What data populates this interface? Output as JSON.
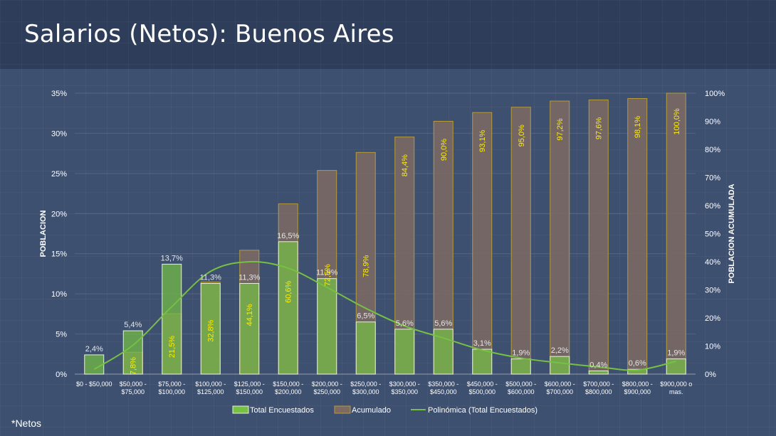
{
  "page": {
    "title": "Salarios (Netos): Buenos Aires",
    "footnote": "*Netos"
  },
  "chart_data": {
    "type": "bar",
    "title": "Salarios (Netos): Buenos Aires",
    "ylabel": "POBLACION",
    "y2label": "POBLACION ACUMULADA",
    "ylim": [
      0,
      35
    ],
    "y2lim": [
      0,
      100
    ],
    "yticks": [
      "0%",
      "5%",
      "10%",
      "15%",
      "20%",
      "25%",
      "30%",
      "35%"
    ],
    "y2ticks": [
      "0%",
      "10%",
      "20%",
      "30%",
      "40%",
      "50%",
      "60%",
      "70%",
      "80%",
      "90%",
      "100%"
    ],
    "categories": [
      [
        "$0 - $50,000"
      ],
      [
        "$50,000 -",
        "$75,000"
      ],
      [
        "$75,000 -",
        "$100,000"
      ],
      [
        "$100,000 -",
        "$125,000"
      ],
      [
        "$125,000 -",
        "$150,000"
      ],
      [
        "$150,000 -",
        "$200,000"
      ],
      [
        "$200,000 -",
        "$250,000"
      ],
      [
        "$250,000 -",
        "$300,000"
      ],
      [
        "$300,000 -",
        "$350,000"
      ],
      [
        "$350,000 -",
        "$450,000"
      ],
      [
        "$450,000 -",
        "$500,000"
      ],
      [
        "$500,000 -",
        "$600,000"
      ],
      [
        "$600,000 -",
        "$700,000"
      ],
      [
        "$700,000 -",
        "$800,000"
      ],
      [
        "$800,000 -",
        "$900,000"
      ],
      [
        "$900,000 o",
        "mas."
      ]
    ],
    "series": [
      {
        "name": "Total Encuestados",
        "axis": "left",
        "color": "#76c043",
        "values": [
          2.4,
          5.4,
          13.7,
          11.3,
          11.3,
          16.5,
          11.9,
          6.5,
          5.6,
          5.6,
          3.1,
          1.9,
          2.2,
          0.4,
          0.6,
          1.9
        ],
        "labels": [
          "2,4%",
          "5,4%",
          "13,7%",
          "11,3%",
          "11,3%",
          "16,5%",
          "11,9%",
          "6,5%",
          "5,6%",
          "5,6%",
          "3,1%",
          "1,9%",
          "2,2%",
          "0,4%",
          "0,6%",
          "1,9%"
        ]
      },
      {
        "name": "Acumulado",
        "axis": "right",
        "color": "#7d6a62",
        "values": [
          null,
          7.8,
          21.5,
          32.8,
          44.1,
          60.6,
          72.5,
          78.9,
          84.4,
          90.0,
          93.1,
          95.0,
          97.2,
          97.6,
          98.1,
          100.0
        ],
        "labels": [
          "",
          "7,8%",
          "21,5%",
          "32,8%",
          "44,1%",
          "60,6%",
          "72,5%",
          "78,9%",
          "84,4%",
          "90,0%",
          "93,1%",
          "95,0%",
          "97,2%",
          "97,6%",
          "98,1%",
          "100,0%"
        ]
      }
    ],
    "trendline": {
      "name": "Polinómica (Total Encuestados)",
      "color": "#76c043",
      "values": [
        0.6,
        3.6,
        8.4,
        12.8,
        14.0,
        13.2,
        10.8,
        8.2,
        6.0,
        4.5,
        3.0,
        2.0,
        1.4,
        0.9,
        0.5,
        1.6
      ]
    },
    "legend": [
      "Total Encuestados",
      "Acumulado",
      "Polinómica (Total Encuestados)"
    ],
    "legend_position": "bottom"
  }
}
